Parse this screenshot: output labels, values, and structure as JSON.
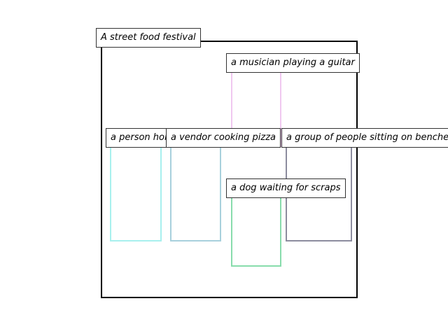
{
  "title": "A street food festival",
  "objects": [
    {
      "id": "musician",
      "label": "a musician playing a guitar",
      "color": "#f0c8f0"
    },
    {
      "id": "person",
      "label": "a person holding a corn dog",
      "color": "#a8f0ee"
    },
    {
      "id": "vendor",
      "label": "a vendor cooking pizza",
      "color": "#a8d0dc"
    },
    {
      "id": "group",
      "label": "a group of people sitting on benches",
      "color": "#8c8c9e"
    },
    {
      "id": "dog",
      "label": "a dog waiting for scraps",
      "color": "#88dcac"
    }
  ]
}
